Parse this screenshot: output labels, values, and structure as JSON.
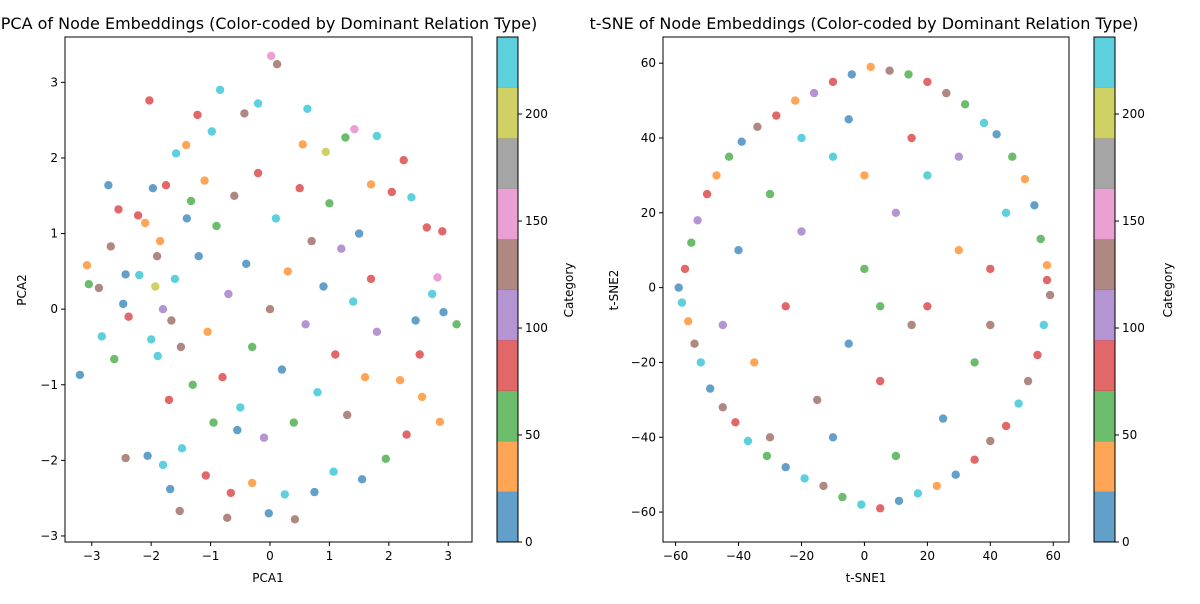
{
  "chart_data": [
    {
      "type": "scatter",
      "title": "PCA of Node Embeddings (Color-coded by Dominant Relation Type)",
      "xlabel": "PCA1",
      "ylabel": "PCA2",
      "xlim": [
        -3.45,
        3.4
      ],
      "ylim": [
        -3.08,
        3.6
      ],
      "xticks": [
        -3,
        -2,
        -1,
        0,
        1,
        2,
        3
      ],
      "yticks": [
        -3,
        -2,
        -1,
        0,
        1,
        2,
        3
      ],
      "grid": false,
      "colorbar": {
        "label": "Category",
        "min": 0,
        "max": 236,
        "ticks": [
          0,
          50,
          100,
          150,
          200
        ],
        "colors": [
          "#1f77b4",
          "#ff7f0e",
          "#2ca02c",
          "#d62728",
          "#9467bd",
          "#8c564b",
          "#e377c2",
          "#7f7f7f",
          "#bcbd22",
          "#17becf"
        ]
      },
      "points": [
        [
          -3.2,
          -0.87,
          0
        ],
        [
          -3.08,
          0.58,
          40
        ],
        [
          -3.05,
          0.33,
          60
        ],
        [
          -2.88,
          0.28,
          130
        ],
        [
          -2.83,
          -0.36,
          230
        ],
        [
          -2.72,
          1.64,
          0
        ],
        [
          -2.68,
          0.83,
          130
        ],
        [
          -2.62,
          -0.66,
          60
        ],
        [
          -2.55,
          1.32,
          90
        ],
        [
          -2.47,
          0.07,
          0
        ],
        [
          -2.43,
          0.46,
          10
        ],
        [
          -2.43,
          -1.97,
          130
        ],
        [
          -2.38,
          -0.1,
          90
        ],
        [
          -2.22,
          1.24,
          90
        ],
        [
          -2.2,
          0.45,
          230
        ],
        [
          -2.1,
          1.14,
          40
        ],
        [
          -2.06,
          -1.94,
          0
        ],
        [
          -2.03,
          2.76,
          90
        ],
        [
          -1.97,
          1.6,
          0
        ],
        [
          -1.93,
          0.3,
          200
        ],
        [
          -1.89,
          -0.62,
          230
        ],
        [
          -1.85,
          0.9,
          40
        ],
        [
          -1.8,
          -2.06,
          230
        ],
        [
          -1.75,
          1.64,
          90
        ],
        [
          -1.68,
          -2.38,
          0
        ],
        [
          -1.66,
          -0.15,
          130
        ],
        [
          -1.58,
          2.06,
          230
        ],
        [
          -1.52,
          -2.67,
          130
        ],
        [
          -1.48,
          -1.84,
          230
        ],
        [
          -1.41,
          2.17,
          40
        ],
        [
          -1.33,
          1.43,
          60
        ],
        [
          -1.22,
          2.57,
          90
        ],
        [
          -1.08,
          -2.2,
          90
        ],
        [
          -0.98,
          2.35,
          230
        ],
        [
          -0.84,
          2.9,
          230
        ],
        [
          -0.72,
          -2.76,
          130
        ],
        [
          -0.66,
          -2.43,
          90
        ],
        [
          -0.55,
          -1.6,
          10
        ],
        [
          -0.43,
          2.59,
          130
        ],
        [
          -0.3,
          -2.3,
          40
        ],
        [
          -0.2,
          2.72,
          230
        ],
        [
          -0.02,
          -2.7,
          0
        ],
        [
          0.02,
          3.35,
          160
        ],
        [
          0.12,
          3.24,
          130
        ],
        [
          0.25,
          -2.45,
          230
        ],
        [
          0.42,
          -2.78,
          130
        ],
        [
          0.55,
          2.18,
          40
        ],
        [
          0.63,
          2.65,
          230
        ],
        [
          0.75,
          -2.42,
          0
        ],
        [
          0.94,
          2.08,
          200
        ],
        [
          1.07,
          -2.15,
          230
        ],
        [
          1.27,
          2.27,
          60
        ],
        [
          1.42,
          2.38,
          160
        ],
        [
          1.55,
          -2.25,
          0
        ],
        [
          1.7,
          1.65,
          40
        ],
        [
          1.8,
          2.29,
          230
        ],
        [
          1.95,
          -1.98,
          60
        ],
        [
          2.05,
          1.55,
          90
        ],
        [
          2.19,
          -0.94,
          40
        ],
        [
          2.25,
          1.97,
          90
        ],
        [
          2.3,
          -1.66,
          90
        ],
        [
          2.38,
          1.48,
          230
        ],
        [
          2.45,
          -0.15,
          0
        ],
        [
          2.52,
          -0.6,
          90
        ],
        [
          2.56,
          -1.16,
          40
        ],
        [
          2.64,
          1.08,
          90
        ],
        [
          2.73,
          0.2,
          230
        ],
        [
          2.82,
          0.42,
          160
        ],
        [
          2.86,
          -1.49,
          40
        ],
        [
          2.9,
          1.03,
          90
        ],
        [
          2.92,
          -0.04,
          0
        ],
        [
          3.14,
          -0.2,
          60
        ],
        [
          -1.2,
          0.7,
          0
        ],
        [
          -1.05,
          -0.3,
          40
        ],
        [
          -0.9,
          1.1,
          60
        ],
        [
          -0.8,
          -0.9,
          90
        ],
        [
          -0.7,
          0.2,
          100
        ],
        [
          -0.6,
          1.5,
          130
        ],
        [
          -0.5,
          -1.3,
          230
        ],
        [
          -0.4,
          0.6,
          0
        ],
        [
          -0.3,
          -0.5,
          60
        ],
        [
          -0.2,
          1.8,
          90
        ],
        [
          -0.1,
          -1.7,
          100
        ],
        [
          0.0,
          0.0,
          130
        ],
        [
          0.1,
          1.2,
          230
        ],
        [
          0.2,
          -0.8,
          0
        ],
        [
          0.3,
          0.5,
          40
        ],
        [
          0.4,
          -1.5,
          60
        ],
        [
          0.5,
          1.6,
          90
        ],
        [
          0.6,
          -0.2,
          100
        ],
        [
          0.7,
          0.9,
          130
        ],
        [
          0.8,
          -1.1,
          230
        ],
        [
          0.9,
          0.3,
          0
        ],
        [
          1.0,
          1.4,
          60
        ],
        [
          1.1,
          -0.6,
          90
        ],
        [
          1.2,
          0.8,
          100
        ],
        [
          1.3,
          -1.4,
          130
        ],
        [
          1.4,
          0.1,
          230
        ],
        [
          1.5,
          1.0,
          0
        ],
        [
          1.6,
          -0.9,
          40
        ],
        [
          1.7,
          0.4,
          90
        ],
        [
          1.8,
          -0.3,
          100
        ],
        [
          -1.5,
          -0.5,
          130
        ],
        [
          -1.6,
          0.4,
          230
        ],
        [
          -1.4,
          1.2,
          0
        ],
        [
          -1.3,
          -1.0,
          60
        ],
        [
          -1.7,
          -1.2,
          90
        ],
        [
          -1.8,
          0.0,
          100
        ],
        [
          -1.9,
          0.7,
          130
        ],
        [
          -2.0,
          -0.4,
          230
        ],
        [
          -1.1,
          1.7,
          40
        ],
        [
          -0.95,
          -1.5,
          60
        ]
      ]
    },
    {
      "type": "scatter",
      "title": "t-SNE of Node Embeddings (Color-coded by Dominant Relation Type)",
      "xlabel": "t-SNE1",
      "ylabel": "t-SNE2",
      "xlim": [
        -64,
        65
      ],
      "ylim": [
        -68,
        67
      ],
      "xticks": [
        -60,
        -40,
        -20,
        0,
        20,
        40,
        60
      ],
      "yticks": [
        -60,
        -40,
        -20,
        0,
        20,
        40,
        60
      ],
      "grid": false,
      "colorbar": {
        "label": "Category",
        "min": 0,
        "max": 236,
        "ticks": [
          0,
          50,
          100,
          150,
          200
        ],
        "colors": [
          "#1f77b4",
          "#ff7f0e",
          "#2ca02c",
          "#d62728",
          "#9467bd",
          "#8c564b",
          "#e377c2",
          "#7f7f7f",
          "#bcbd22",
          "#17becf"
        ]
      },
      "points": [
        [
          -59,
          0,
          0
        ],
        [
          -58,
          -4,
          230
        ],
        [
          -57,
          5,
          90
        ],
        [
          -56,
          -9,
          40
        ],
        [
          -55,
          12,
          60
        ],
        [
          -54,
          -15,
          130
        ],
        [
          -53,
          18,
          100
        ],
        [
          -52,
          -20,
          230
        ],
        [
          -50,
          25,
          90
        ],
        [
          -49,
          -27,
          0
        ],
        [
          -47,
          30,
          40
        ],
        [
          -45,
          -32,
          130
        ],
        [
          -43,
          35,
          60
        ],
        [
          -41,
          -36,
          90
        ],
        [
          -39,
          39,
          0
        ],
        [
          -37,
          -41,
          230
        ],
        [
          -34,
          43,
          130
        ],
        [
          -31,
          -45,
          60
        ],
        [
          -28,
          46,
          90
        ],
        [
          -25,
          -48,
          0
        ],
        [
          -22,
          50,
          40
        ],
        [
          -19,
          -51,
          230
        ],
        [
          -16,
          52,
          100
        ],
        [
          -13,
          -53,
          130
        ],
        [
          -10,
          55,
          90
        ],
        [
          -7,
          -56,
          60
        ],
        [
          -4,
          57,
          0
        ],
        [
          -1,
          -58,
          230
        ],
        [
          2,
          59,
          40
        ],
        [
          5,
          -59,
          90
        ],
        [
          8,
          58,
          130
        ],
        [
          11,
          -57,
          0
        ],
        [
          14,
          57,
          60
        ],
        [
          17,
          -55,
          230
        ],
        [
          20,
          55,
          90
        ],
        [
          23,
          -53,
          40
        ],
        [
          26,
          52,
          130
        ],
        [
          29,
          -50,
          0
        ],
        [
          32,
          49,
          60
        ],
        [
          35,
          -46,
          90
        ],
        [
          38,
          44,
          230
        ],
        [
          40,
          -41,
          130
        ],
        [
          42,
          41,
          0
        ],
        [
          45,
          -37,
          90
        ],
        [
          47,
          35,
          60
        ],
        [
          49,
          -31,
          230
        ],
        [
          51,
          29,
          40
        ],
        [
          52,
          -25,
          130
        ],
        [
          54,
          22,
          0
        ],
        [
          55,
          -18,
          90
        ],
        [
          56,
          13,
          60
        ],
        [
          57,
          -10,
          230
        ],
        [
          58,
          6,
          40
        ],
        [
          59,
          -2,
          130
        ],
        [
          58,
          2,
          90
        ],
        [
          -40,
          10,
          0
        ],
        [
          -35,
          -20,
          40
        ],
        [
          -30,
          25,
          60
        ],
        [
          -25,
          -5,
          90
        ],
        [
          -20,
          15,
          100
        ],
        [
          -15,
          -30,
          130
        ],
        [
          -10,
          35,
          230
        ],
        [
          -5,
          -15,
          0
        ],
        [
          0,
          5,
          60
        ],
        [
          5,
          -25,
          90
        ],
        [
          10,
          20,
          100
        ],
        [
          15,
          -10,
          130
        ],
        [
          20,
          30,
          230
        ],
        [
          25,
          -35,
          0
        ],
        [
          30,
          10,
          40
        ],
        [
          35,
          -20,
          60
        ],
        [
          40,
          5,
          90
        ],
        [
          -45,
          -10,
          100
        ],
        [
          -30,
          -40,
          130
        ],
        [
          -20,
          40,
          230
        ],
        [
          -10,
          -40,
          0
        ],
        [
          0,
          30,
          40
        ],
        [
          10,
          -45,
          60
        ],
        [
          20,
          -5,
          90
        ],
        [
          30,
          35,
          100
        ],
        [
          40,
          -10,
          130
        ],
        [
          45,
          20,
          230
        ],
        [
          -5,
          45,
          0
        ],
        [
          5,
          -5,
          60
        ],
        [
          15,
          40,
          90
        ]
      ]
    }
  ]
}
